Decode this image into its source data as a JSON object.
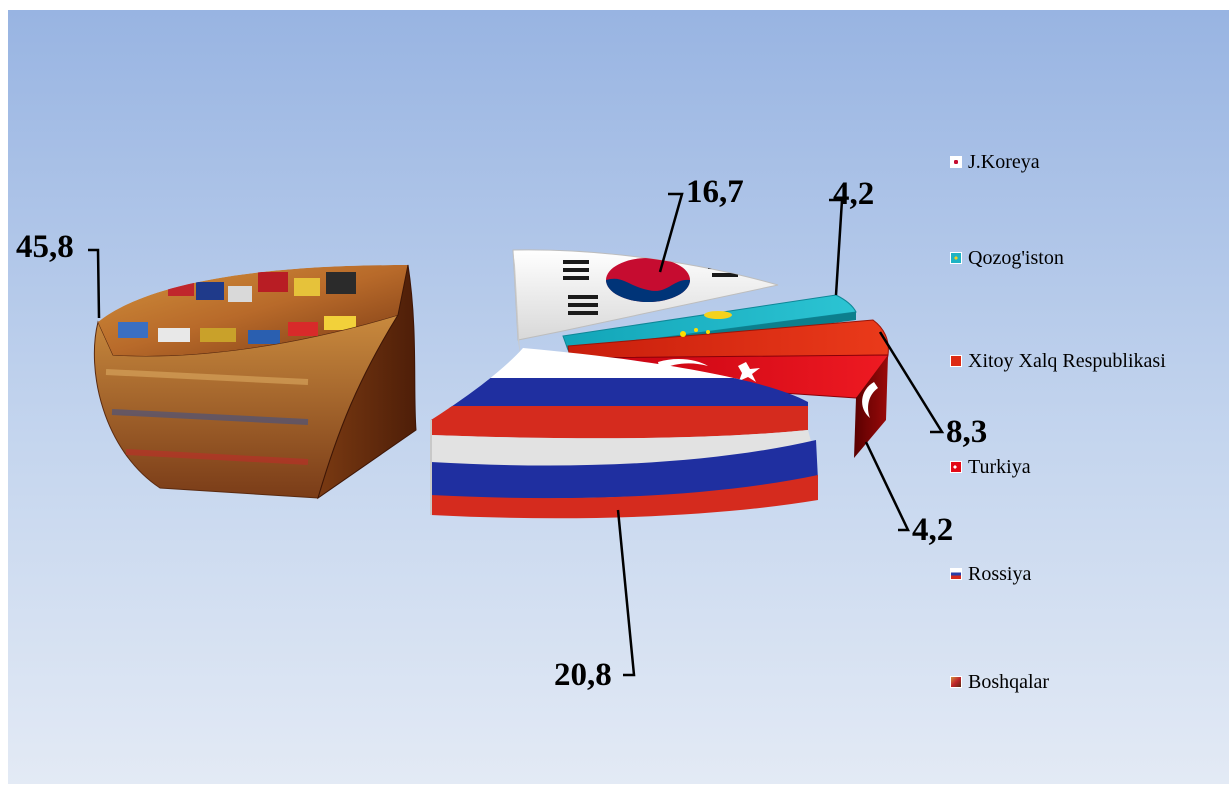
{
  "chart_data": {
    "type": "pie",
    "style": "3d-exploded",
    "categories": [
      "J.Koreya",
      "Qozog'iston",
      "Xitoy Xalq Respublikasi",
      "Turkiya",
      "Rossiya",
      "Boshqalar"
    ],
    "values": [
      16.7,
      4.2,
      8.3,
      4.2,
      20.8,
      45.8
    ],
    "value_labels": [
      "16,7",
      "4,2",
      "8,3",
      "4,2",
      "20,8",
      "45,8"
    ],
    "colors": [
      "#f2f2f2",
      "#1eb3c4",
      "#dd2a13",
      "#e30a17",
      "#2a3fa8",
      "#8a4a1e"
    ],
    "legend_position": "right",
    "grid": false
  },
  "legend": {
    "items": [
      {
        "label": "J.Koreya",
        "color": "#f2f2f2",
        "icon": "korea-flag-icon"
      },
      {
        "label": "Qozog'iston",
        "color": "#1eb3c4",
        "icon": "kazakhstan-flag-icon"
      },
      {
        "label": "Xitoy Xalq Respublikasi",
        "color": "#dd2a13",
        "icon": "china-flag-icon"
      },
      {
        "label": "Turkiya",
        "color": "#e30a17",
        "icon": "turkey-flag-icon"
      },
      {
        "label": "Rossiya",
        "color": "#2a3fa8",
        "icon": "russia-flag-icon"
      },
      {
        "label": "Boshqalar",
        "color": "#8a4a1e",
        "icon": "flags-collage-icon"
      }
    ]
  }
}
